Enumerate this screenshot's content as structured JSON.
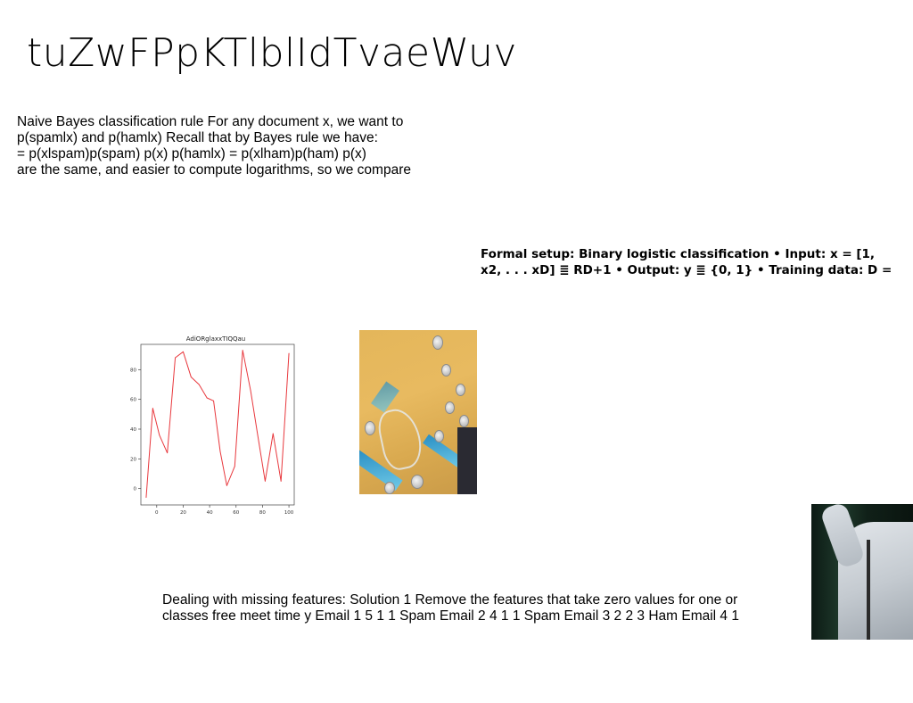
{
  "slide": {
    "title": "tuZwFPpKTlblIdTvaeWuv"
  },
  "text_block_1": {
    "lines": [
      "Naive Bayes classification rule For any document x, we want to",
      "p(spamlx) and p(hamlx) Recall that by Bayes rule we have:",
      "= p(xlspam)p(spam) p(x) p(hamlx) = p(xlham)p(ham) p(x)",
      "are the same, and easier to compute logarithms, so we compare"
    ]
  },
  "text_block_2": {
    "lines": [
      "Formal setup: Binary logistic classification • Input: x = [1,",
      "x2, . . . xD] ≣ RD+1 • Output: y ≣ {0, 1} • Training data: D ="
    ]
  },
  "text_block_3": {
    "lines": [
      "Dealing with missing features: Solution 1 Remove the features that take zero values for one or",
      "classes free meet time y Email 1 5 1 1 Spam Email 2 4 1 1 Spam Email 3 2 2 3 Ham Email 4 1"
    ]
  },
  "chart_data": {
    "type": "line",
    "title": "AdiORglaxxTIQQau",
    "xlabel": "",
    "ylabel": "",
    "x": [
      -8,
      -3,
      2,
      8,
      14,
      20,
      26,
      32,
      38,
      43,
      48,
      53,
      59,
      65,
      71,
      76,
      82,
      88,
      94,
      100
    ],
    "series": [
      {
        "values": [
          -6,
          54,
          36,
          24,
          88,
          92,
          75,
          70,
          61,
          59,
          25,
          2,
          15,
          93,
          66,
          38,
          5,
          37,
          5,
          91
        ],
        "color": "#e8383d"
      }
    ],
    "xticks": [
      "0",
      "20",
      "40",
      "60",
      "80",
      "100"
    ],
    "yticks": [
      "0",
      "20",
      "40",
      "60",
      "80"
    ],
    "xlim": [
      -12,
      104
    ],
    "ylim": [
      -11,
      97
    ],
    "grid": false,
    "legend": "none"
  },
  "images": {
    "photo_1": "easter-eggs-photo",
    "photo_2": "person-in-white-shirt-photo"
  }
}
